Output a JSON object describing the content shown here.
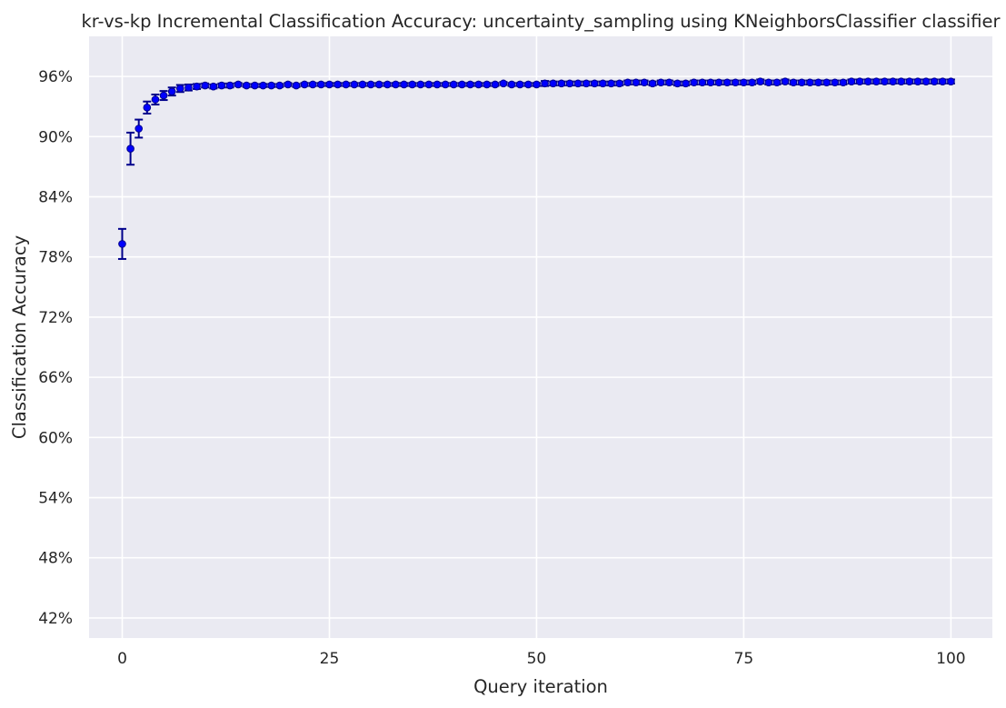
{
  "chart_data": {
    "type": "scatter",
    "title": "kr-vs-kp Incremental Classification Accuracy: uncertainty_sampling using KNeighborsClassifier classifier",
    "xlabel": "Query iteration",
    "ylabel": "Classification Accuracy",
    "xlim": [
      -4,
      105
    ],
    "ylim": [
      40,
      100
    ],
    "xticks": [
      0,
      25,
      50,
      75,
      100
    ],
    "xtick_labels": [
      "0",
      "25",
      "50",
      "75",
      "100"
    ],
    "yticks": [
      42,
      48,
      54,
      60,
      66,
      72,
      78,
      84,
      90,
      96
    ],
    "ytick_labels": [
      "42%",
      "48%",
      "54%",
      "60%",
      "66%",
      "72%",
      "78%",
      "84%",
      "90%",
      "96%"
    ],
    "grid": true,
    "background": "#eaeaf2",
    "grid_color": "#ffffff",
    "marker_color": "#0000ff",
    "errorbar_color": "#00008b",
    "x": [
      0,
      1,
      2,
      3,
      4,
      5,
      6,
      7,
      8,
      9,
      10,
      11,
      12,
      13,
      14,
      15,
      16,
      17,
      18,
      19,
      20,
      21,
      22,
      23,
      24,
      25,
      26,
      27,
      28,
      29,
      30,
      31,
      32,
      33,
      34,
      35,
      36,
      37,
      38,
      39,
      40,
      41,
      42,
      43,
      44,
      45,
      46,
      47,
      48,
      49,
      50,
      51,
      52,
      53,
      54,
      55,
      56,
      57,
      58,
      59,
      60,
      61,
      62,
      63,
      64,
      65,
      66,
      67,
      68,
      69,
      70,
      71,
      72,
      73,
      74,
      75,
      76,
      77,
      78,
      79,
      80,
      81,
      82,
      83,
      84,
      85,
      86,
      87,
      88,
      89,
      90,
      91,
      92,
      93,
      94,
      95,
      96,
      97,
      98,
      99,
      100
    ],
    "y": [
      79.3,
      88.8,
      90.8,
      92.9,
      93.7,
      94.1,
      94.5,
      94.8,
      94.9,
      95.0,
      95.1,
      95.0,
      95.1,
      95.1,
      95.2,
      95.1,
      95.1,
      95.1,
      95.1,
      95.1,
      95.2,
      95.1,
      95.2,
      95.2,
      95.2,
      95.2,
      95.2,
      95.2,
      95.2,
      95.2,
      95.2,
      95.2,
      95.2,
      95.2,
      95.2,
      95.2,
      95.2,
      95.2,
      95.2,
      95.2,
      95.2,
      95.2,
      95.2,
      95.2,
      95.2,
      95.2,
      95.3,
      95.2,
      95.2,
      95.2,
      95.2,
      95.3,
      95.3,
      95.3,
      95.3,
      95.3,
      95.3,
      95.3,
      95.3,
      95.3,
      95.3,
      95.4,
      95.4,
      95.4,
      95.3,
      95.4,
      95.4,
      95.3,
      95.3,
      95.4,
      95.4,
      95.4,
      95.4,
      95.4,
      95.4,
      95.4,
      95.4,
      95.5,
      95.4,
      95.4,
      95.5,
      95.4,
      95.4,
      95.4,
      95.4,
      95.4,
      95.4,
      95.4,
      95.5,
      95.5,
      95.5,
      95.5,
      95.5,
      95.5,
      95.5,
      95.5,
      95.5,
      95.5,
      95.5,
      95.5,
      95.5
    ],
    "yerr": [
      1.5,
      1.6,
      0.9,
      0.6,
      0.5,
      0.45,
      0.4,
      0.35,
      0.3,
      0.25,
      0.2,
      0.2,
      0.2,
      0.2,
      0.15,
      0.15,
      0.15,
      0.15,
      0.15,
      0.15,
      0.15,
      0.15,
      0.15,
      0.15,
      0.15,
      0.15,
      0.15,
      0.15,
      0.15,
      0.15,
      0.15,
      0.15,
      0.15,
      0.15,
      0.15,
      0.15,
      0.15,
      0.15,
      0.15,
      0.15,
      0.15,
      0.15,
      0.15,
      0.15,
      0.15,
      0.15,
      0.15,
      0.15,
      0.15,
      0.15,
      0.15,
      0.25,
      0.2,
      0.2,
      0.2,
      0.2,
      0.2,
      0.2,
      0.2,
      0.2,
      0.2,
      0.2,
      0.2,
      0.2,
      0.2,
      0.2,
      0.2,
      0.2,
      0.2,
      0.2,
      0.2,
      0.2,
      0.2,
      0.2,
      0.2,
      0.2,
      0.2,
      0.2,
      0.2,
      0.2,
      0.2,
      0.2,
      0.2,
      0.2,
      0.2,
      0.2,
      0.2,
      0.2,
      0.2,
      0.2,
      0.2,
      0.2,
      0.2,
      0.2,
      0.2,
      0.2,
      0.2,
      0.2,
      0.2,
      0.2,
      0.2
    ]
  }
}
